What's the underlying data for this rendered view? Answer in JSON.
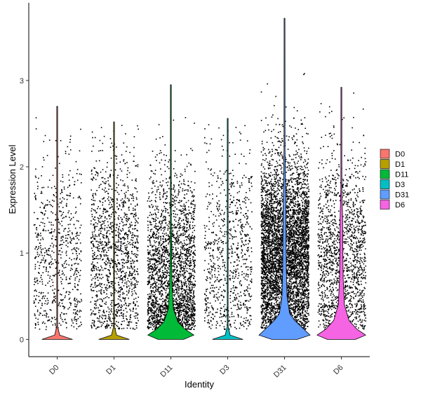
{
  "chart_data": {
    "type": "violin",
    "xlabel": "Identity",
    "ylabel": "Expression Level",
    "categories": [
      "D0",
      "D1",
      "D11",
      "D3",
      "D31",
      "D6"
    ],
    "ylim": [
      -0.2,
      3.9
    ],
    "yticks": [
      0,
      1,
      2,
      3
    ],
    "grid": false,
    "legend": {
      "position": "right"
    },
    "colors": [
      "#F8766D",
      "#B79F00",
      "#00BA38",
      "#00BFC4",
      "#619CFF",
      "#F564E3"
    ],
    "series": [
      {
        "name": "D0",
        "max": 2.7,
        "min": 0,
        "density": [
          [
            0,
            0.6
          ],
          [
            0.05,
            0.1
          ],
          [
            0.15,
            0.0
          ],
          [
            2.7,
            0.0
          ]
        ],
        "points": 700
      },
      {
        "name": "D1",
        "max": 2.52,
        "min": 0,
        "density": [
          [
            0,
            0.6
          ],
          [
            0.05,
            0.1
          ],
          [
            0.15,
            0.0
          ],
          [
            2.52,
            0.0
          ]
        ],
        "points": 1300
      },
      {
        "name": "D11",
        "max": 2.95,
        "min": 0,
        "density": [
          [
            0,
            0.5
          ],
          [
            0.05,
            0.9
          ],
          [
            0.12,
            0.55
          ],
          [
            0.2,
            0.28
          ],
          [
            0.35,
            0.1
          ],
          [
            0.6,
            0.05
          ],
          [
            0.9,
            0.03
          ],
          [
            1.5,
            0.01
          ],
          [
            2.95,
            0.0
          ]
        ],
        "points": 2600
      },
      {
        "name": "D3",
        "max": 2.56,
        "min": 0,
        "density": [
          [
            0,
            0.6
          ],
          [
            0.05,
            0.1
          ],
          [
            0.15,
            0.0
          ],
          [
            2.56,
            0.0
          ]
        ],
        "points": 800
      },
      {
        "name": "D31",
        "max": 3.72,
        "min": 0,
        "density": [
          [
            0,
            0.5
          ],
          [
            0.05,
            1.0
          ],
          [
            0.12,
            0.75
          ],
          [
            0.22,
            0.4
          ],
          [
            0.3,
            0.2
          ],
          [
            0.5,
            0.1
          ],
          [
            0.8,
            0.07
          ],
          [
            1.2,
            0.06
          ],
          [
            1.6,
            0.05
          ],
          [
            2.2,
            0.02
          ],
          [
            3.72,
            0.0
          ]
        ],
        "points": 5200
      },
      {
        "name": "D6",
        "max": 2.92,
        "min": 0,
        "density": [
          [
            0,
            0.55
          ],
          [
            0.05,
            0.95
          ],
          [
            0.12,
            0.6
          ],
          [
            0.22,
            0.3
          ],
          [
            0.4,
            0.12
          ],
          [
            0.7,
            0.07
          ],
          [
            1.0,
            0.06
          ],
          [
            1.4,
            0.05
          ],
          [
            1.75,
            0.02
          ],
          [
            2.92,
            0.0
          ]
        ],
        "points": 1600
      }
    ]
  }
}
